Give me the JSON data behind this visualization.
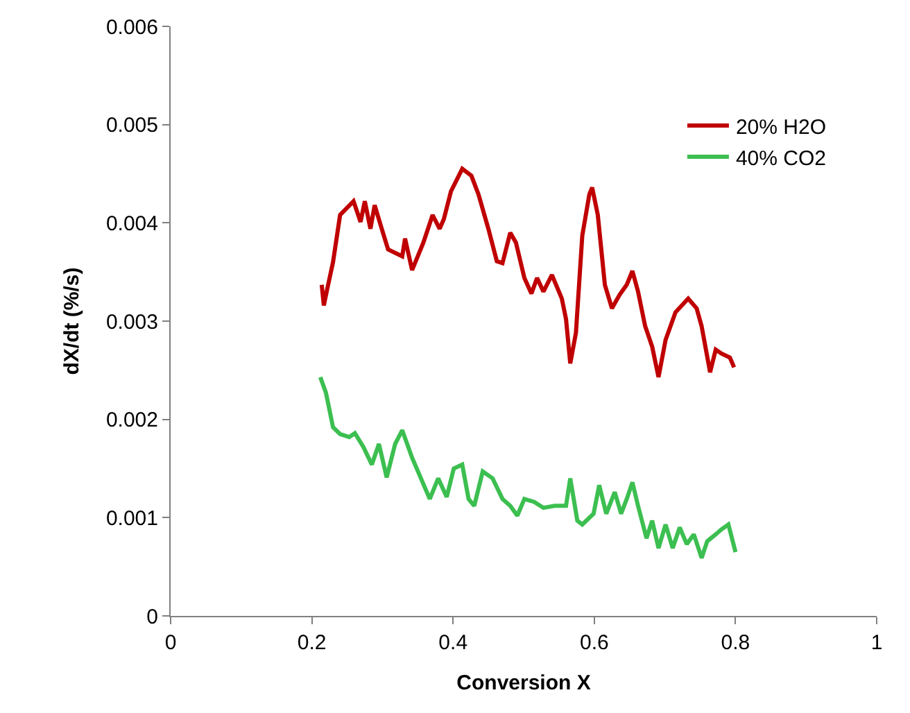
{
  "chart_data": {
    "type": "line",
    "xlabel": "Conversion X",
    "ylabel": "dX/dt (%/s)",
    "xlim": [
      0,
      1
    ],
    "xticks": [
      0,
      0.2,
      0.4,
      0.6,
      0.8,
      1
    ],
    "ylim": [
      0,
      0.006
    ],
    "yticks": [
      0,
      0.001,
      0.002,
      0.003,
      0.004,
      0.005,
      0.006
    ],
    "legend": "top right",
    "marker": "none",
    "line_style": "solid",
    "series": [
      {
        "name": "20% H2O",
        "color": "#c00000",
        "x": [
          0.214,
          0.217,
          0.221,
          0.23,
          0.24,
          0.259,
          0.269,
          0.275,
          0.283,
          0.289,
          0.299,
          0.308,
          0.328,
          0.332,
          0.342,
          0.358,
          0.371,
          0.381,
          0.387,
          0.397,
          0.413,
          0.426,
          0.436,
          0.45,
          0.462,
          0.47,
          0.481,
          0.489,
          0.501,
          0.511,
          0.519,
          0.528,
          0.54,
          0.554,
          0.56,
          0.566,
          0.574,
          0.583,
          0.593,
          0.597,
          0.605,
          0.615,
          0.625,
          0.636,
          0.646,
          0.654,
          0.662,
          0.672,
          0.682,
          0.691,
          0.701,
          0.715,
          0.733,
          0.745,
          0.752,
          0.764,
          0.772,
          0.78,
          0.792,
          0.798
        ],
        "values": [
          0.00337,
          0.00316,
          0.0033,
          0.0036,
          0.00408,
          0.00422,
          0.00401,
          0.00422,
          0.00394,
          0.00418,
          0.00394,
          0.00373,
          0.00366,
          0.00384,
          0.00352,
          0.0038,
          0.00408,
          0.00394,
          0.00404,
          0.00432,
          0.00455,
          0.00448,
          0.00429,
          0.00394,
          0.00361,
          0.00359,
          0.0039,
          0.0038,
          0.00344,
          0.00328,
          0.00344,
          0.0033,
          0.00347,
          0.00323,
          0.00302,
          0.00257,
          0.00288,
          0.00387,
          0.00429,
          0.00436,
          0.00408,
          0.00337,
          0.00313,
          0.00327,
          0.00337,
          0.00351,
          0.0033,
          0.00295,
          0.00274,
          0.00243,
          0.00281,
          0.00309,
          0.00323,
          0.00313,
          0.00295,
          0.00248,
          0.00271,
          0.00267,
          0.00263,
          0.00253
        ]
      },
      {
        "name": "40% CO2",
        "color": "#3cbf50",
        "x": [
          0.212,
          0.22,
          0.23,
          0.24,
          0.253,
          0.261,
          0.273,
          0.285,
          0.295,
          0.306,
          0.318,
          0.328,
          0.342,
          0.367,
          0.379,
          0.391,
          0.401,
          0.413,
          0.422,
          0.43,
          0.442,
          0.456,
          0.47,
          0.481,
          0.491,
          0.501,
          0.515,
          0.528,
          0.544,
          0.56,
          0.566,
          0.576,
          0.583,
          0.599,
          0.607,
          0.617,
          0.629,
          0.638,
          0.646,
          0.654,
          0.662,
          0.674,
          0.682,
          0.691,
          0.701,
          0.711,
          0.721,
          0.731,
          0.741,
          0.752,
          0.76,
          0.772,
          0.78,
          0.79,
          0.8
        ],
        "values": [
          0.00243,
          0.00227,
          0.00192,
          0.00185,
          0.00182,
          0.00186,
          0.00172,
          0.00154,
          0.00175,
          0.00141,
          0.00175,
          0.00189,
          0.00161,
          0.00119,
          0.0014,
          0.00121,
          0.0015,
          0.00154,
          0.00119,
          0.00112,
          0.00147,
          0.0014,
          0.00119,
          0.00112,
          0.00102,
          0.00119,
          0.00116,
          0.0011,
          0.00112,
          0.00112,
          0.0014,
          0.00097,
          0.00093,
          0.00104,
          0.00133,
          0.00104,
          0.00126,
          0.00104,
          0.00119,
          0.00136,
          0.00112,
          0.00079,
          0.00097,
          0.00069,
          0.00093,
          0.00069,
          0.0009,
          0.00073,
          0.00083,
          0.00059,
          0.00076,
          0.00083,
          0.00088,
          0.00093,
          0.00065
        ]
      }
    ]
  }
}
